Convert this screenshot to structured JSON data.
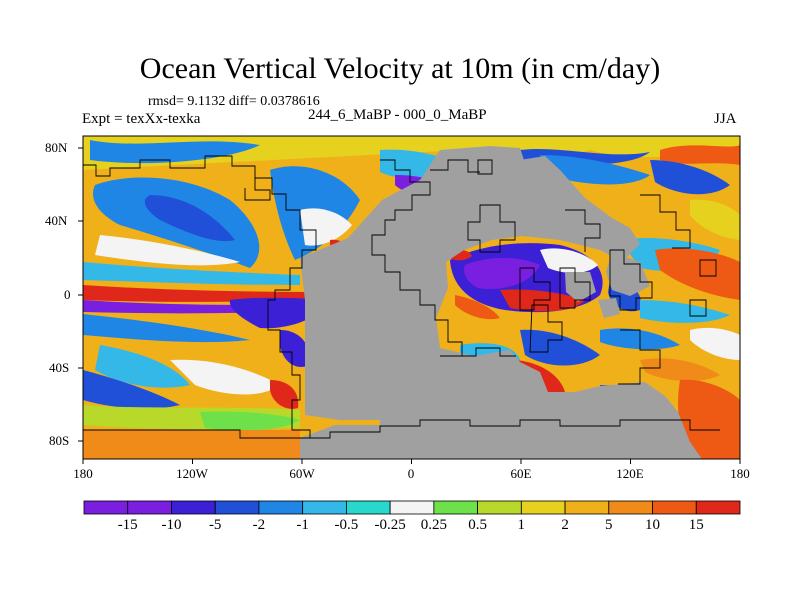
{
  "title": "Ocean Vertical Velocity at 10m (in cm/day)",
  "stats": "rmsd= 9.1132 diff= 0.0378616",
  "experiment_label": "Expt = texXx-texka",
  "case_label": "244_6_MaBP - 000_0_MaBP",
  "season_label": "JJA",
  "latitude_labels": [
    "80N",
    "40N",
    "0",
    "40S",
    "80S"
  ],
  "longitude_labels": [
    "180",
    "120W",
    "60W",
    "0",
    "60E",
    "120E",
    "180"
  ],
  "colorbar": {
    "labels": [
      "-15",
      "-10",
      "-5",
      "-2",
      "-1",
      "-0.5",
      "-0.25",
      "0.25",
      "0.5",
      "1",
      "2",
      "5",
      "10",
      "15"
    ],
    "colors": [
      "#7a1fe0",
      "#3b20d6",
      "#2050d8",
      "#1f86e6",
      "#33b8e8",
      "#28d8cc",
      "#f4f4f4",
      "#6ee04a",
      "#b8d82a",
      "#e6d21e",
      "#f0b01a",
      "#f08a18",
      "#ee5a14",
      "#e0281a"
    ]
  },
  "colors": {
    "land": "#a0a0a0",
    "ocean_base": "#f0b01a"
  }
}
